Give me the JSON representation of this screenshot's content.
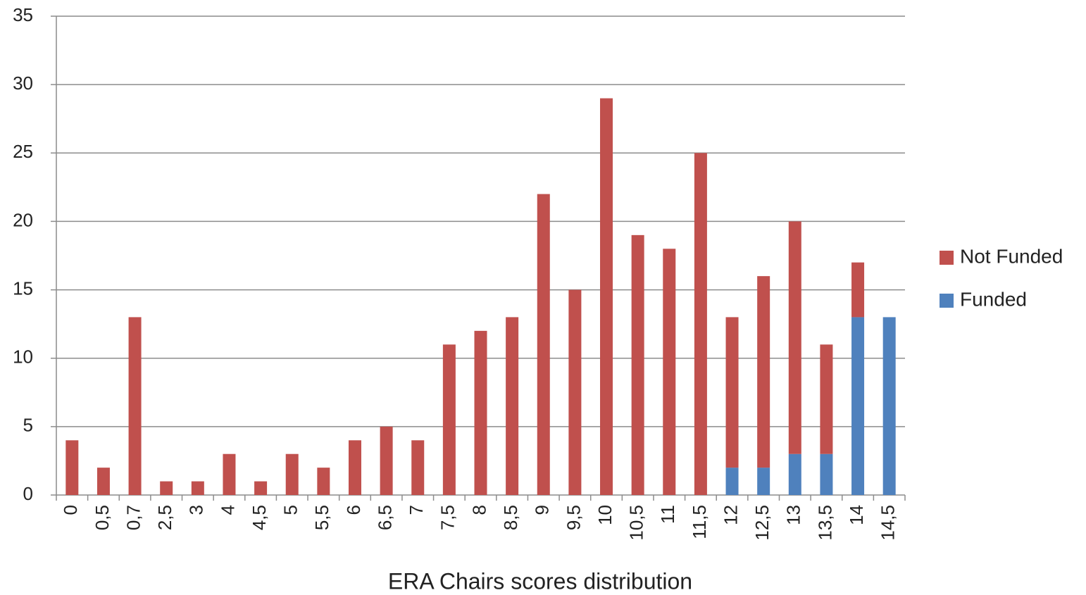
{
  "chart_data": {
    "type": "bar",
    "stacked": true,
    "x_label": "ERA Chairs scores distribution",
    "categories": [
      "0",
      "0,5",
      "0,7",
      "2,5",
      "3",
      "4",
      "4,5",
      "5",
      "5,5",
      "6",
      "6,5",
      "7",
      "7,5",
      "8",
      "8,5",
      "9",
      "9,5",
      "10",
      "10,5",
      "11",
      "11,5",
      "12",
      "12,5",
      "13",
      "13,5",
      "14",
      "14,5"
    ],
    "series": [
      {
        "name": "Funded",
        "color": "#4f81bd",
        "values": [
          0,
          0,
          0,
          0,
          0,
          0,
          0,
          0,
          0,
          0,
          0,
          0,
          0,
          0,
          0,
          0,
          0,
          0,
          0,
          0,
          0,
          2,
          2,
          3,
          3,
          13,
          13
        ]
      },
      {
        "name": "Not Funded",
        "color": "#c0504d",
        "values": [
          4,
          2,
          13,
          1,
          1,
          3,
          1,
          3,
          2,
          4,
          5,
          4,
          11,
          12,
          13,
          22,
          15,
          29,
          19,
          18,
          25,
          11,
          14,
          17,
          8,
          4,
          0
        ]
      }
    ],
    "ylim": [
      0,
      35
    ],
    "yticks": [
      0,
      5,
      10,
      15,
      20,
      25,
      30,
      35
    ],
    "grid": true,
    "legend": "right"
  }
}
